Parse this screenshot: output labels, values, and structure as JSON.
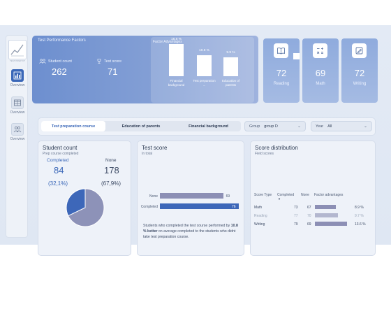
{
  "sidebar": {
    "logo_caption": "TEST PREP KIT",
    "items": [
      {
        "label": "Overview",
        "icon": "bar-chart-icon"
      },
      {
        "label": "Overview",
        "icon": "table-icon"
      },
      {
        "label": "Overview",
        "icon": "people-icon"
      }
    ]
  },
  "banner": {
    "title": "Test Performance Factors",
    "student_count_label": "Student count",
    "student_count": "262",
    "test_score_label": "Test score",
    "test_score": "71",
    "factor_panel_title": "Factor Advantages",
    "factors": [
      {
        "label": "Financial background",
        "value_label": "16.6 %",
        "value": 16.6
      },
      {
        "label": "Test preparation ...",
        "value_label": "10.8 %",
        "value": 10.8
      },
      {
        "label": "Education of parents",
        "value_label": "9.9 %",
        "value": 9.9
      }
    ]
  },
  "score_cards": [
    {
      "value": "72",
      "label": "Reading",
      "icon": "book-icon"
    },
    {
      "value": "69",
      "label": "Math",
      "icon": "calculator-icon"
    },
    {
      "value": "72",
      "label": "Writing",
      "icon": "pencil-icon"
    }
  ],
  "filters": {
    "segments": [
      "Test preparation course",
      "Education of parents",
      "Financial background"
    ],
    "active_segment": "Test preparation course",
    "group_label": "Group",
    "group_value": "group D",
    "year_label": "Year",
    "year_value": "All"
  },
  "student_count_card": {
    "title": "Student count",
    "subtitle": "Prep course completed",
    "completed_label": "Completed",
    "completed_value": "84",
    "completed_pct": "(32,1%)",
    "none_label": "None",
    "none_value": "178",
    "none_pct": "(67,9%)",
    "completed_fraction": 0.321
  },
  "test_score_card": {
    "title": "Test score",
    "subtitle": "In total",
    "rows": [
      {
        "label": "None",
        "value": "69",
        "num": 69
      },
      {
        "label": "Completed",
        "value": "76",
        "num": 76
      }
    ],
    "note_pre": "Students who completed the test course performed by ",
    "note_bold": "10.8 % better",
    "note_post": " on average completed to the students who didnt take test preparation course."
  },
  "score_distribution_card": {
    "title": "Score distribution",
    "subtitle": "Field scores",
    "headers": [
      "Score Type",
      "Completed",
      "None",
      "Factor advantages"
    ],
    "rows": [
      {
        "type": "Math",
        "completed": "73",
        "none": "67",
        "adv": "8.9 %",
        "adv_num": 8.9,
        "muted": false
      },
      {
        "type": "Reading",
        "completed": "77",
        "none": "70",
        "adv": "9.7 %",
        "adv_num": 9.7,
        "muted": true
      },
      {
        "type": "Writing",
        "completed": "79",
        "none": "69",
        "adv": "13.6 %",
        "adv_num": 13.6,
        "muted": false
      }
    ]
  },
  "colors": {
    "accent": "#3a67b8",
    "pie_completed": "#3d67b9",
    "pie_none": "#8d92b8",
    "bar_none": "#8c8fb5"
  }
}
